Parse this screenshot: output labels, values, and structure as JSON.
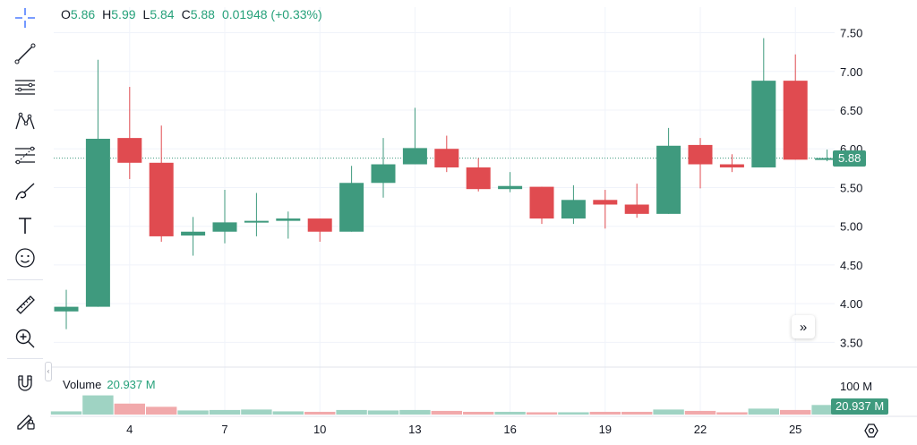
{
  "legend": {
    "o_label": "O",
    "o_value": "5.86",
    "h_label": "H",
    "h_value": "5.99",
    "l_label": "L",
    "l_value": "5.84",
    "c_label": "C",
    "c_value": "5.88",
    "change": "0.01948 (+0.33%)"
  },
  "volume": {
    "label": "Volume",
    "value": "20.937 M",
    "axis_label": "100 M",
    "tag": "20.937 M"
  },
  "price_tag": "5.88",
  "scroll_button": "»",
  "colors": {
    "up": "#3f9a7e",
    "down": "#e04b50",
    "up_volume": "#9fd3c3",
    "down_volume": "#f1a9ab",
    "grid": "#f0f3fa",
    "axis_text": "#131722"
  },
  "toolbar": [
    {
      "icon": "crosshair-icon"
    },
    {
      "icon": "trend-line-icon"
    },
    {
      "icon": "horizontal-lines-icon"
    },
    {
      "icon": "pattern-icon"
    },
    {
      "icon": "fib-retracement-icon"
    },
    {
      "icon": "brush-icon"
    },
    {
      "icon": "text-icon",
      "label": "T"
    },
    {
      "icon": "emoji-icon"
    },
    {
      "icon": "ruler-icon"
    },
    {
      "icon": "zoom-in-icon"
    },
    {
      "icon": "magnet-icon"
    },
    {
      "icon": "lock-drawing-icon"
    }
  ],
  "chart_data": {
    "type": "candlestick",
    "x_tick_labels": [
      "4",
      "7",
      "10",
      "13",
      "16",
      "19",
      "22",
      "25"
    ],
    "y_tick_labels": [
      "7.50",
      "7.00",
      "6.50",
      "6.00",
      "5.50",
      "5.00",
      "4.50",
      "4.00",
      "3.50"
    ],
    "yticks": [
      7.5,
      7.0,
      6.5,
      6.0,
      5.5,
      5.0,
      4.5,
      4.0,
      3.5
    ],
    "ylim": [
      3.25,
      7.83
    ],
    "last_price": 5.88,
    "candles": [
      {
        "x": "2",
        "o": 3.9,
        "h": 4.18,
        "l": 3.67,
        "c": 3.96
      },
      {
        "x": "3",
        "o": 3.96,
        "h": 7.15,
        "l": 3.96,
        "c": 6.13
      },
      {
        "x": "4",
        "o": 6.14,
        "h": 6.8,
        "l": 5.61,
        "c": 5.82
      },
      {
        "x": "5",
        "o": 5.82,
        "h": 6.3,
        "l": 4.8,
        "c": 4.87
      },
      {
        "x": "6",
        "o": 4.88,
        "h": 5.12,
        "l": 4.62,
        "c": 4.93
      },
      {
        "x": "7",
        "o": 4.93,
        "h": 5.47,
        "l": 4.78,
        "c": 5.05
      },
      {
        "x": "8",
        "o": 5.05,
        "h": 5.43,
        "l": 4.87,
        "c": 5.07
      },
      {
        "x": "9",
        "o": 5.07,
        "h": 5.19,
        "l": 4.84,
        "c": 5.1
      },
      {
        "x": "10",
        "o": 5.1,
        "h": 5.1,
        "l": 4.8,
        "c": 4.93
      },
      {
        "x": "11",
        "o": 4.93,
        "h": 5.78,
        "l": 4.93,
        "c": 5.56
      },
      {
        "x": "12",
        "o": 5.56,
        "h": 6.14,
        "l": 5.37,
        "c": 5.8
      },
      {
        "x": "13",
        "o": 5.8,
        "h": 6.53,
        "l": 5.8,
        "c": 6.01
      },
      {
        "x": "14",
        "o": 6.0,
        "h": 6.17,
        "l": 5.7,
        "c": 5.76
      },
      {
        "x": "15",
        "o": 5.76,
        "h": 5.88,
        "l": 5.45,
        "c": 5.48
      },
      {
        "x": "16",
        "o": 5.48,
        "h": 5.7,
        "l": 5.44,
        "c": 5.52
      },
      {
        "x": "17",
        "o": 5.51,
        "h": 5.51,
        "l": 5.03,
        "c": 5.1
      },
      {
        "x": "18",
        "o": 5.1,
        "h": 5.53,
        "l": 5.03,
        "c": 5.34
      },
      {
        "x": "19",
        "o": 5.34,
        "h": 5.47,
        "l": 4.97,
        "c": 5.28
      },
      {
        "x": "20",
        "o": 5.28,
        "h": 5.55,
        "l": 5.11,
        "c": 5.16
      },
      {
        "x": "21",
        "o": 5.16,
        "h": 6.27,
        "l": 5.16,
        "c": 6.04
      },
      {
        "x": "22",
        "o": 6.05,
        "h": 6.14,
        "l": 5.49,
        "c": 5.8
      },
      {
        "x": "23",
        "o": 5.8,
        "h": 5.93,
        "l": 5.7,
        "c": 5.76
      },
      {
        "x": "24",
        "o": 5.76,
        "h": 7.43,
        "l": 5.76,
        "c": 6.88
      },
      {
        "x": "25",
        "o": 6.88,
        "h": 7.22,
        "l": 5.86,
        "c": 5.86
      },
      {
        "x": "26",
        "o": 5.86,
        "h": 5.99,
        "l": 5.84,
        "c": 5.88
      }
    ],
    "volume_ylim": [
      0,
      100
    ],
    "volume_unit": "M",
    "volumes": [
      7,
      42,
      24,
      17,
      9,
      10,
      11,
      7,
      6,
      10,
      9,
      10,
      8,
      6,
      6,
      5,
      5,
      6,
      6,
      11,
      8,
      5,
      13,
      10,
      20.937
    ]
  }
}
